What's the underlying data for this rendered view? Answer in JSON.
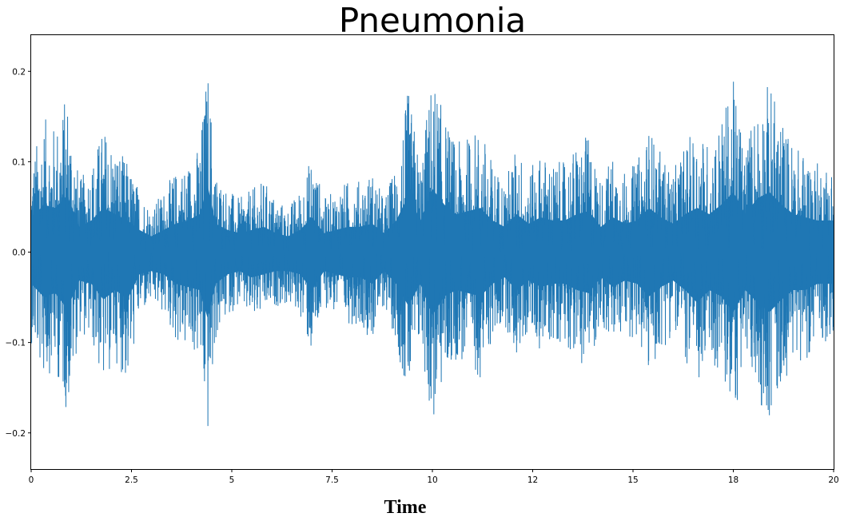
{
  "chart_data": {
    "type": "line",
    "title": "Pneumonia",
    "xlabel": "Time",
    "ylabel": "",
    "xlim": [
      0,
      20
    ],
    "ylim": [
      -0.24,
      0.24
    ],
    "grid": false,
    "legend": "none",
    "x_ticks": [
      {
        "value": 0,
        "label": "0"
      },
      {
        "value": 2.5,
        "label": "2.5"
      },
      {
        "value": 5,
        "label": "5"
      },
      {
        "value": 7.5,
        "label": "7.5"
      },
      {
        "value": 10,
        "label": "10"
      },
      {
        "value": 12.5,
        "label": "12"
      },
      {
        "value": 15,
        "label": "15"
      },
      {
        "value": 17.5,
        "label": "18"
      },
      {
        "value": 20,
        "label": "20"
      }
    ],
    "y_ticks": [
      {
        "value": 0.2,
        "label": "0.2"
      },
      {
        "value": 0.1,
        "label": "0.1"
      },
      {
        "value": 0.0,
        "label": "0.0"
      },
      {
        "value": -0.1,
        "label": "−0.1"
      },
      {
        "value": -0.2,
        "label": "−0.2"
      }
    ],
    "series_color": "#1f77b4",
    "envelope": {
      "t": [
        0,
        0.3,
        0.6,
        0.9,
        1.2,
        1.5,
        1.8,
        2.1,
        2.4,
        2.7,
        3.0,
        3.3,
        3.6,
        3.9,
        4.2,
        4.4,
        4.6,
        4.9,
        5.2,
        5.5,
        5.8,
        6.1,
        6.4,
        6.7,
        7.0,
        7.3,
        7.6,
        7.9,
        8.2,
        8.5,
        8.8,
        9.1,
        9.4,
        9.7,
        10.0,
        10.3,
        10.6,
        10.9,
        11.2,
        11.5,
        11.8,
        12.1,
        12.4,
        12.7,
        13.0,
        13.3,
        13.6,
        13.9,
        14.2,
        14.5,
        14.8,
        15.1,
        15.4,
        15.7,
        16.0,
        16.3,
        16.6,
        16.9,
        17.2,
        17.5,
        17.8,
        18.1,
        18.4,
        18.7,
        19.0,
        19.3,
        19.6,
        20.0
      ],
      "upper": [
        0.1,
        0.15,
        0.14,
        0.18,
        0.08,
        0.1,
        0.14,
        0.12,
        0.1,
        0.07,
        0.05,
        0.07,
        0.09,
        0.1,
        0.12,
        0.21,
        0.09,
        0.07,
        0.06,
        0.07,
        0.08,
        0.06,
        0.05,
        0.07,
        0.11,
        0.06,
        0.07,
        0.08,
        0.08,
        0.09,
        0.06,
        0.1,
        0.18,
        0.1,
        0.2,
        0.15,
        0.12,
        0.13,
        0.14,
        0.1,
        0.08,
        0.12,
        0.09,
        0.11,
        0.1,
        0.1,
        0.12,
        0.13,
        0.08,
        0.11,
        0.09,
        0.1,
        0.14,
        0.11,
        0.09,
        0.12,
        0.14,
        0.12,
        0.15,
        0.19,
        0.12,
        0.17,
        0.19,
        0.15,
        0.12,
        0.11,
        0.1,
        0.1
      ],
      "lower": [
        -0.1,
        -0.14,
        -0.13,
        -0.18,
        -0.09,
        -0.1,
        -0.15,
        -0.12,
        -0.15,
        -0.07,
        -0.06,
        -0.07,
        -0.1,
        -0.11,
        -0.12,
        -0.21,
        -0.1,
        -0.07,
        -0.06,
        -0.08,
        -0.07,
        -0.06,
        -0.06,
        -0.07,
        -0.12,
        -0.06,
        -0.07,
        -0.08,
        -0.08,
        -0.1,
        -0.06,
        -0.1,
        -0.17,
        -0.1,
        -0.2,
        -0.14,
        -0.12,
        -0.13,
        -0.14,
        -0.1,
        -0.08,
        -0.12,
        -0.09,
        -0.11,
        -0.1,
        -0.1,
        -0.12,
        -0.13,
        -0.08,
        -0.11,
        -0.09,
        -0.1,
        -0.14,
        -0.11,
        -0.09,
        -0.12,
        -0.16,
        -0.12,
        -0.14,
        -0.19,
        -0.12,
        -0.16,
        -0.19,
        -0.15,
        -0.12,
        -0.12,
        -0.1,
        -0.1
      ]
    }
  }
}
